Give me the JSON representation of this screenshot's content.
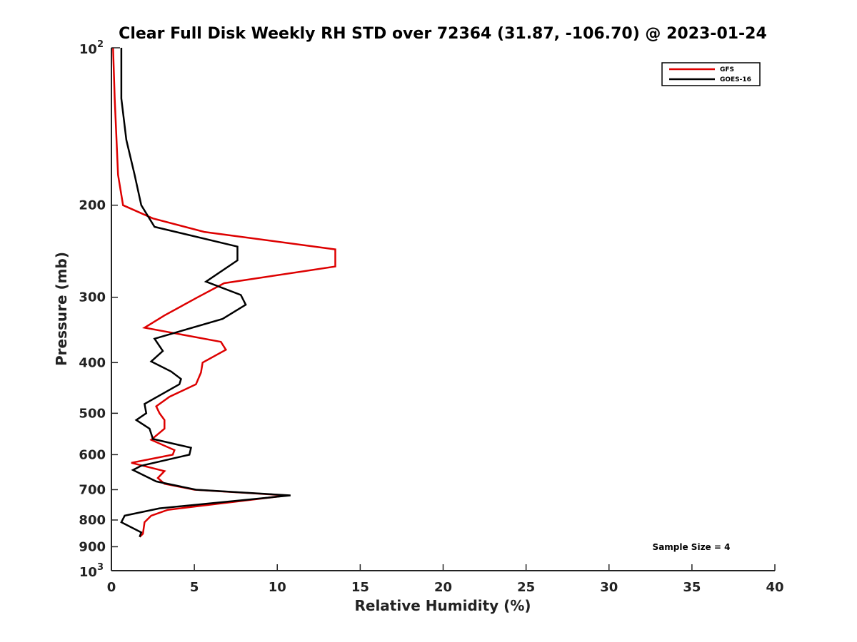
{
  "chart_data": {
    "type": "line",
    "title": "Clear Full Disk Weekly RH STD over 72364 (31.87, -106.70) @ 2023-01-24",
    "xlabel": "Relative Humidity (%)",
    "ylabel": "Pressure (mb)",
    "xlim": [
      0,
      40
    ],
    "ylim": [
      100,
      1000
    ],
    "y_scale": "log",
    "y_reversed": true,
    "x_ticks": [
      0,
      5,
      10,
      15,
      20,
      25,
      30,
      35,
      40
    ],
    "x_tick_labels": [
      "0",
      "5",
      "10",
      "15",
      "20",
      "25",
      "30",
      "35",
      "40"
    ],
    "y_ticks": [
      200,
      300,
      400,
      500,
      600,
      700,
      800,
      900
    ],
    "y_tick_labels": [
      "200",
      "300",
      "400",
      "500",
      "600",
      "700",
      "800",
      "900"
    ],
    "y_major_labels": [
      {
        "value": 100,
        "base": "10",
        "exp": "2"
      },
      {
        "value": 1000,
        "base": "10",
        "exp": "3"
      }
    ],
    "grid": false,
    "legend_position": "top-right",
    "annotation": "Sample Size = 4",
    "series": [
      {
        "name": "GFS",
        "color": "#dd0000",
        "points": [
          [
            0.1,
            100
          ],
          [
            0.2,
            125
          ],
          [
            0.4,
            175
          ],
          [
            0.7,
            200
          ],
          [
            2.5,
            212
          ],
          [
            5.6,
            225
          ],
          [
            13.5,
            243
          ],
          [
            13.5,
            262
          ],
          [
            6.8,
            282
          ],
          [
            5.2,
            300
          ],
          [
            3.2,
            325
          ],
          [
            2.0,
            343
          ],
          [
            6.6,
            365
          ],
          [
            6.9,
            378
          ],
          [
            5.5,
            400
          ],
          [
            5.4,
            418
          ],
          [
            5.1,
            440
          ],
          [
            3.5,
            465
          ],
          [
            2.7,
            485
          ],
          [
            2.9,
            500
          ],
          [
            3.2,
            515
          ],
          [
            3.2,
            535
          ],
          [
            2.4,
            562
          ],
          [
            3.8,
            588
          ],
          [
            3.7,
            600
          ],
          [
            1.2,
            622
          ],
          [
            3.2,
            645
          ],
          [
            2.8,
            665
          ],
          [
            3.2,
            682
          ],
          [
            5.0,
            700
          ],
          [
            10.6,
            718
          ],
          [
            3.4,
            765
          ],
          [
            2.4,
            785
          ],
          [
            2.0,
            808
          ],
          [
            1.9,
            850
          ],
          [
            1.7,
            862
          ]
        ]
      },
      {
        "name": "GOES-16",
        "color": "#000000",
        "points": [
          [
            0.6,
            100
          ],
          [
            0.6,
            125
          ],
          [
            0.9,
            150
          ],
          [
            1.4,
            175
          ],
          [
            1.8,
            200
          ],
          [
            2.6,
            220
          ],
          [
            7.6,
            240
          ],
          [
            7.6,
            255
          ],
          [
            5.7,
            280
          ],
          [
            7.8,
            297
          ],
          [
            8.1,
            310
          ],
          [
            6.7,
            330
          ],
          [
            2.6,
            360
          ],
          [
            3.1,
            380
          ],
          [
            2.4,
            398
          ],
          [
            3.6,
            416
          ],
          [
            4.2,
            430
          ],
          [
            4.1,
            440
          ],
          [
            2.0,
            480
          ],
          [
            2.1,
            500
          ],
          [
            1.5,
            515
          ],
          [
            2.3,
            535
          ],
          [
            2.5,
            560
          ],
          [
            4.8,
            582
          ],
          [
            4.7,
            600
          ],
          [
            1.8,
            630
          ],
          [
            1.3,
            642
          ],
          [
            2.7,
            675
          ],
          [
            5.1,
            700
          ],
          [
            10.8,
            718
          ],
          [
            2.9,
            760
          ],
          [
            0.8,
            785
          ],
          [
            0.6,
            808
          ],
          [
            1.8,
            845
          ],
          [
            1.7,
            862
          ]
        ]
      }
    ]
  }
}
